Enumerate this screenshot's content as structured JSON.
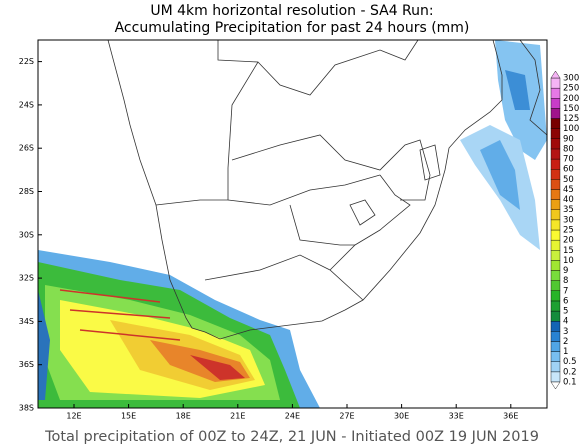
{
  "header": {
    "line1": "UM 4km horizontal resolution - SA4 Run:",
    "line2": "Accumulating Precipitation for past 24 hours (mm)"
  },
  "map": {
    "lat_labels": [
      "22S",
      "24S",
      "26S",
      "28S",
      "30S",
      "32S",
      "34S",
      "36S",
      "38S"
    ],
    "lon_labels": [
      "12E",
      "15E",
      "18E",
      "21E",
      "24E",
      "27E",
      "30E",
      "33E",
      "36E"
    ]
  },
  "colorbar": {
    "levels": [
      0.1,
      0.2,
      0.5,
      1,
      2,
      3,
      4,
      5,
      6,
      7,
      8,
      9,
      10,
      15,
      20,
      25,
      30,
      35,
      40,
      45,
      50,
      60,
      70,
      80,
      90,
      100,
      125,
      150,
      200,
      250,
      300
    ],
    "colors": [
      "#c8e6fa",
      "#a0d2f5",
      "#78bef0",
      "#50a5e6",
      "#2882d2",
      "#1464b4",
      "#148c3c",
      "#1ea032",
      "#28b428",
      "#50c832",
      "#78dc3c",
      "#a0e632",
      "#c8f03c",
      "#e6f532",
      "#fafa32",
      "#f5e628",
      "#f0c81e",
      "#eba014",
      "#e67814",
      "#dc5014",
      "#d23214",
      "#c81e14",
      "#b41414",
      "#a00a0a",
      "#8c0505",
      "#780000",
      "#a0148c",
      "#c83cc8",
      "#e678e6",
      "#f5b4f5"
    ]
  },
  "footer": "Total precipitation of 00Z to 24Z, 21 JUN - Initiated 00Z 19 JUN 2019"
}
